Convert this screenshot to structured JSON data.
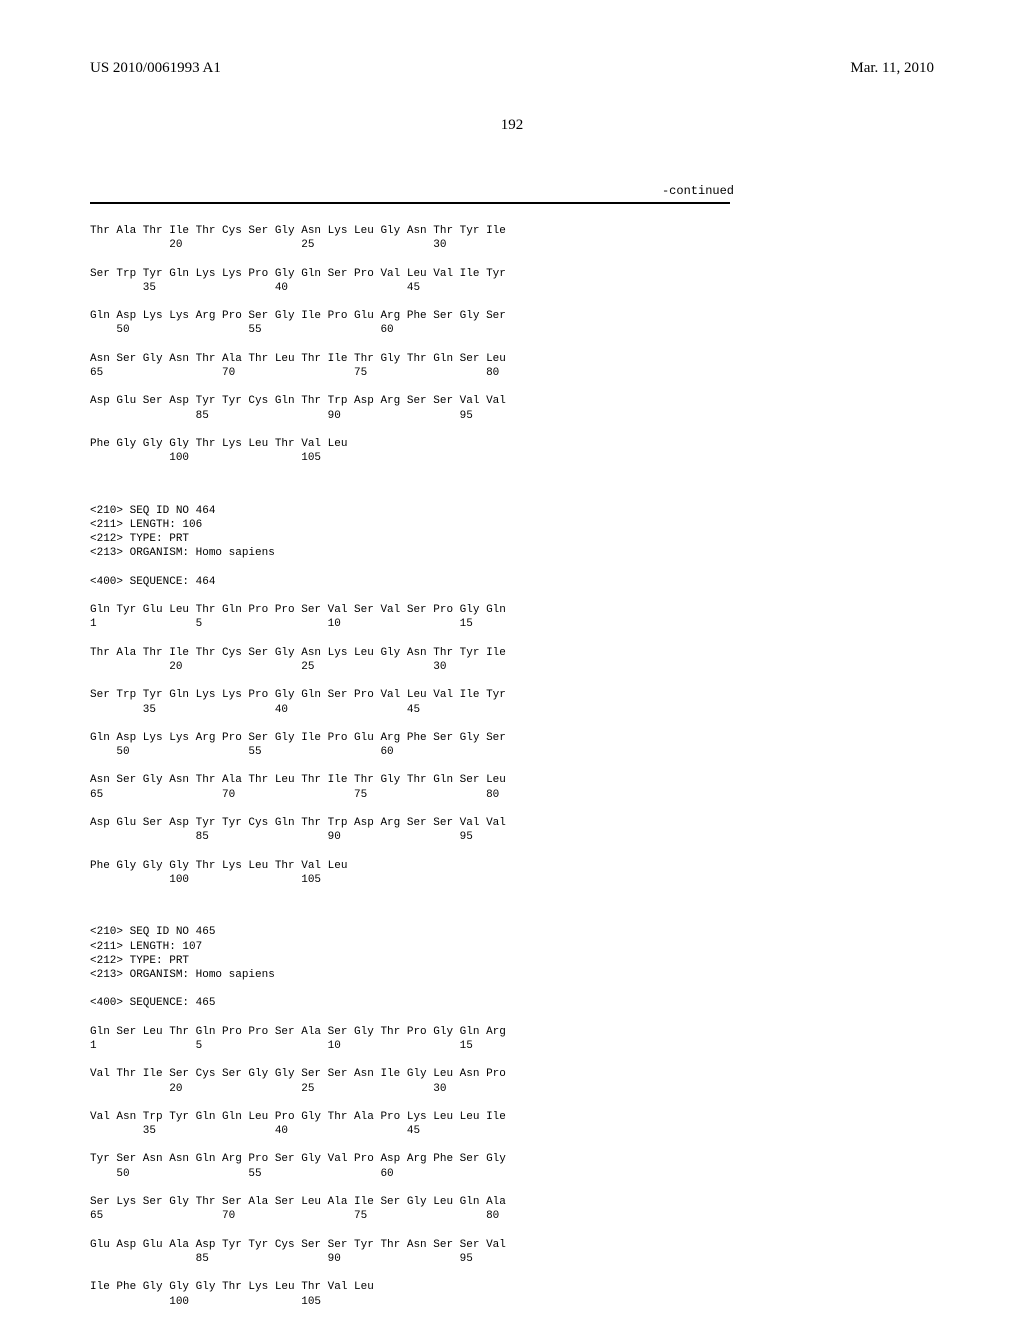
{
  "header": {
    "left": "US 2010/0061993 A1",
    "right": "Mar. 11, 2010"
  },
  "pageNumber": "192",
  "continued": "-continued",
  "blocks": [
    {
      "rows": [
        {
          "residues": "Thr Ala Thr Ile Thr Cys Ser Gly Asn Lys Leu Gly Asn Thr Tyr Ile",
          "nums": "            20                  25                  30"
        },
        {
          "residues": "Ser Trp Tyr Gln Lys Lys Pro Gly Gln Ser Pro Val Leu Val Ile Tyr",
          "nums": "        35                  40                  45"
        },
        {
          "residues": "Gln Asp Lys Lys Arg Pro Ser Gly Ile Pro Glu Arg Phe Ser Gly Ser",
          "nums": "    50                  55                  60"
        },
        {
          "residues": "Asn Ser Gly Asn Thr Ala Thr Leu Thr Ile Thr Gly Thr Gln Ser Leu",
          "nums": "65                  70                  75                  80"
        },
        {
          "residues": "Asp Glu Ser Asp Tyr Tyr Cys Gln Thr Trp Asp Arg Ser Ser Val Val",
          "nums": "                85                  90                  95"
        },
        {
          "residues": "Phe Gly Gly Gly Thr Lys Leu Thr Val Leu",
          "nums": "            100                 105"
        }
      ]
    },
    {
      "meta": [
        "<210> SEQ ID NO 464",
        "<211> LENGTH: 106",
        "<212> TYPE: PRT",
        "<213> ORGANISM: Homo sapiens"
      ],
      "seqHeader": "<400> SEQUENCE: 464",
      "rows": [
        {
          "residues": "Gln Tyr Glu Leu Thr Gln Pro Pro Ser Val Ser Val Ser Pro Gly Gln",
          "nums": "1               5                   10                  15"
        },
        {
          "residues": "Thr Ala Thr Ile Thr Cys Ser Gly Asn Lys Leu Gly Asn Thr Tyr Ile",
          "nums": "            20                  25                  30"
        },
        {
          "residues": "Ser Trp Tyr Gln Lys Lys Pro Gly Gln Ser Pro Val Leu Val Ile Tyr",
          "nums": "        35                  40                  45"
        },
        {
          "residues": "Gln Asp Lys Lys Arg Pro Ser Gly Ile Pro Glu Arg Phe Ser Gly Ser",
          "nums": "    50                  55                  60"
        },
        {
          "residues": "Asn Ser Gly Asn Thr Ala Thr Leu Thr Ile Thr Gly Thr Gln Ser Leu",
          "nums": "65                  70                  75                  80"
        },
        {
          "residues": "Asp Glu Ser Asp Tyr Tyr Cys Gln Thr Trp Asp Arg Ser Ser Val Val",
          "nums": "                85                  90                  95"
        },
        {
          "residues": "Phe Gly Gly Gly Thr Lys Leu Thr Val Leu",
          "nums": "            100                 105"
        }
      ]
    },
    {
      "meta": [
        "<210> SEQ ID NO 465",
        "<211> LENGTH: 107",
        "<212> TYPE: PRT",
        "<213> ORGANISM: Homo sapiens"
      ],
      "seqHeader": "<400> SEQUENCE: 465",
      "rows": [
        {
          "residues": "Gln Ser Leu Thr Gln Pro Pro Ser Ala Ser Gly Thr Pro Gly Gln Arg",
          "nums": "1               5                   10                  15"
        },
        {
          "residues": "Val Thr Ile Ser Cys Ser Gly Gly Ser Ser Asn Ile Gly Leu Asn Pro",
          "nums": "            20                  25                  30"
        },
        {
          "residues": "Val Asn Trp Tyr Gln Gln Leu Pro Gly Thr Ala Pro Lys Leu Leu Ile",
          "nums": "        35                  40                  45"
        },
        {
          "residues": "Tyr Ser Asn Asn Gln Arg Pro Ser Gly Val Pro Asp Arg Phe Ser Gly",
          "nums": "    50                  55                  60"
        },
        {
          "residues": "Ser Lys Ser Gly Thr Ser Ala Ser Leu Ala Ile Ser Gly Leu Gln Ala",
          "nums": "65                  70                  75                  80"
        },
        {
          "residues": "Glu Asp Glu Ala Asp Tyr Tyr Cys Ser Ser Tyr Thr Asn Ser Ser Val",
          "nums": "                85                  90                  95"
        },
        {
          "residues": "Ile Phe Gly Gly Gly Thr Lys Leu Thr Val Leu",
          "nums": "            100                 105"
        }
      ]
    }
  ]
}
